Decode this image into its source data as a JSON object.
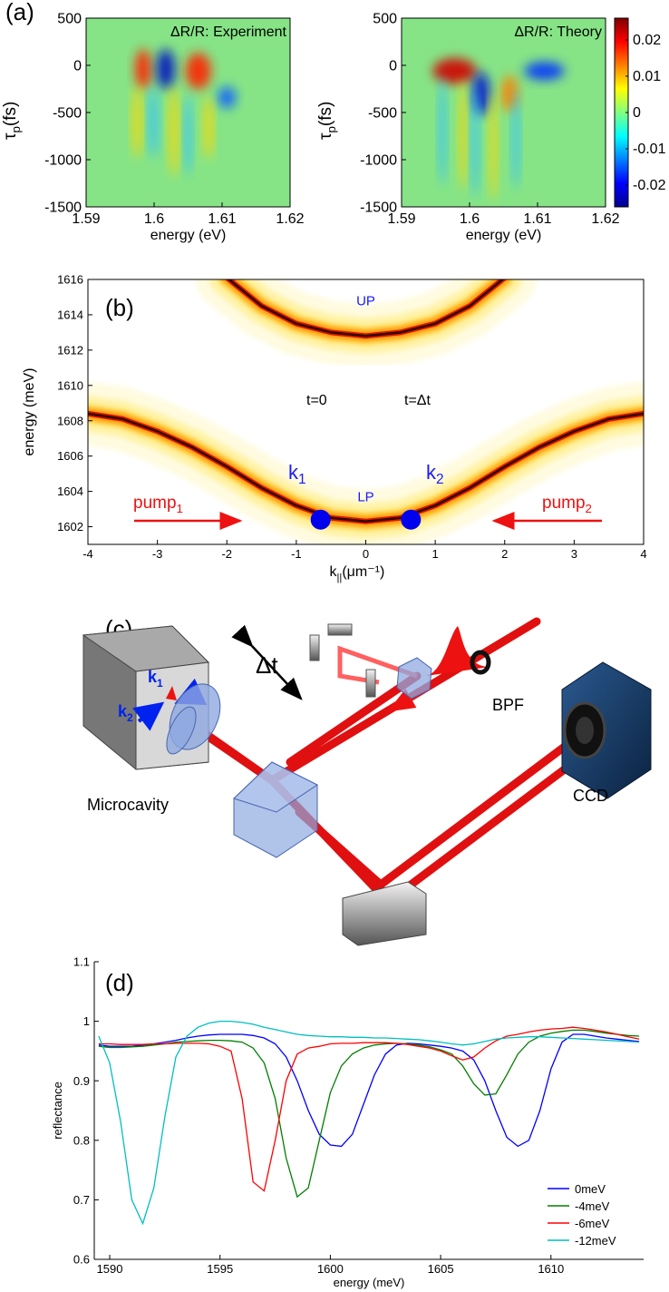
{
  "chart_data": [
    {
      "type": "heatmap",
      "label": "(a)",
      "title": "ΔR/R: Experiment",
      "xlabel": "energy (eV)",
      "ylabel": {
        "symbol": "τ",
        "sub": "p",
        "unit": "(fs)"
      },
      "xlim": [
        1.59,
        1.62
      ],
      "ylim": [
        -1500,
        500
      ],
      "xticks": [
        1.59,
        1.6,
        1.61,
        1.62
      ],
      "yticks": [
        500,
        0,
        -500,
        -1000,
        -1500
      ]
    },
    {
      "type": "heatmap",
      "title": "ΔR/R: Theory",
      "xlabel": "energy (eV)",
      "ylabel": {
        "symbol": "τ",
        "sub": "p",
        "unit": "(fs)"
      },
      "xlim": [
        1.59,
        1.62
      ],
      "ylim": [
        -1500,
        500
      ],
      "xticks": [
        1.59,
        1.6,
        1.61,
        1.62
      ],
      "yticks": [
        500,
        0,
        -500,
        -1000,
        -1500
      ],
      "clim": [
        -0.026,
        0.026
      ],
      "cticks": [
        0.02,
        0.01,
        0,
        -0.01,
        -0.02
      ]
    },
    {
      "type": "line",
      "label": "(b)",
      "xlabel": {
        "symbol": "k",
        "sub": "||",
        "unit": "(μm⁻¹)"
      },
      "ylabel": "energy (meV)",
      "xlim": [
        -4,
        4
      ],
      "ylim": [
        1601,
        1616
      ],
      "xticks": [
        -4,
        -3,
        -2,
        -1,
        0,
        1,
        2,
        3,
        4
      ],
      "yticks": [
        1602,
        1604,
        1606,
        1608,
        1610,
        1612,
        1614,
        1616
      ],
      "x": [
        -4,
        -3.5,
        -3,
        -2.5,
        -2,
        -1.5,
        -1,
        -0.5,
        0,
        0.5,
        1,
        1.5,
        2,
        2.5,
        3,
        3.5,
        4
      ],
      "series": [
        {
          "name": "LP",
          "values": [
            1608.4,
            1608.1,
            1607.4,
            1606.5,
            1605.4,
            1604.2,
            1603.2,
            1602.5,
            1602.3,
            1602.5,
            1603.2,
            1604.2,
            1605.4,
            1606.5,
            1607.4,
            1608.1,
            1608.4
          ]
        },
        {
          "name": "UP",
          "values": [
            null,
            null,
            null,
            null,
            1616.1,
            1614.5,
            1613.5,
            1613.0,
            1612.8,
            1613.0,
            1613.5,
            1614.5,
            1616.1,
            null,
            null,
            null,
            null
          ]
        }
      ],
      "markers": {
        "x": [
          -0.65,
          0.65
        ],
        "y": [
          1602.4,
          1602.4
        ],
        "color": "#0000ee"
      },
      "annotations": {
        "t0": "t=0",
        "tdt": "t=Δt",
        "k1": {
          "text": "k",
          "sub": "1"
        },
        "k2": {
          "text": "k",
          "sub": "2"
        },
        "pump1": {
          "text": "pump",
          "sub": "1"
        },
        "pump2": {
          "text": "pump",
          "sub": "2"
        }
      }
    },
    {
      "type": "line",
      "label": "(d)",
      "xlabel": "energy (meV)",
      "ylabel": "reflectance",
      "xlim": [
        1589.3,
        1614.2
      ],
      "ylim": [
        0.6,
        1.1
      ],
      "xticks": [
        1590,
        1595,
        1600,
        1605,
        1610
      ],
      "yticks": [
        0.6,
        0.7,
        0.8,
        0.9,
        1,
        1.1
      ],
      "x": [
        1589.5,
        1590,
        1590.5,
        1591,
        1591.5,
        1592,
        1592.5,
        1593,
        1593.5,
        1594,
        1594.5,
        1595,
        1595.5,
        1596,
        1596.5,
        1597,
        1597.5,
        1598,
        1598.5,
        1599,
        1599.5,
        1600,
        1600.5,
        1601,
        1601.5,
        1602,
        1602.5,
        1603,
        1603.5,
        1604,
        1604.5,
        1605,
        1605.5,
        1606,
        1606.5,
        1607,
        1607.5,
        1608,
        1608.5,
        1609,
        1609.5,
        1610,
        1610.5,
        1611,
        1611.5,
        1612,
        1612.5,
        1613,
        1613.5,
        1614
      ],
      "series": [
        {
          "name": "0meV",
          "color": "#0000ff",
          "values": [
            0.96,
            0.958,
            0.958,
            0.958,
            0.96,
            0.962,
            0.965,
            0.968,
            0.972,
            0.975,
            0.977,
            0.978,
            0.978,
            0.978,
            0.976,
            0.972,
            0.962,
            0.94,
            0.9,
            0.85,
            0.81,
            0.792,
            0.79,
            0.81,
            0.86,
            0.91,
            0.945,
            0.96,
            0.963,
            0.962,
            0.96,
            0.958,
            0.955,
            0.95,
            0.935,
            0.9,
            0.85,
            0.805,
            0.79,
            0.8,
            0.85,
            0.92,
            0.965,
            0.978,
            0.978,
            0.975,
            0.972,
            0.97,
            0.968,
            0.966
          ]
        },
        {
          "name": "-4meV",
          "color": "#007f00",
          "values": [
            0.958,
            0.956,
            0.956,
            0.957,
            0.958,
            0.96,
            0.962,
            0.965,
            0.966,
            0.967,
            0.968,
            0.968,
            0.967,
            0.965,
            0.955,
            0.93,
            0.87,
            0.77,
            0.705,
            0.72,
            0.8,
            0.88,
            0.925,
            0.945,
            0.955,
            0.96,
            0.962,
            0.963,
            0.962,
            0.96,
            0.957,
            0.952,
            0.945,
            0.925,
            0.895,
            0.876,
            0.878,
            0.91,
            0.945,
            0.965,
            0.975,
            0.98,
            0.983,
            0.985,
            0.985,
            0.983,
            0.98,
            0.978,
            0.976,
            0.975
          ]
        },
        {
          "name": "-6meV",
          "color": "#ff0000",
          "values": [
            0.962,
            0.962,
            0.961,
            0.961,
            0.961,
            0.962,
            0.962,
            0.963,
            0.963,
            0.963,
            0.962,
            0.958,
            0.95,
            0.87,
            0.73,
            0.715,
            0.8,
            0.9,
            0.945,
            0.955,
            0.958,
            0.962,
            0.963,
            0.963,
            0.964,
            0.964,
            0.964,
            0.963,
            0.961,
            0.958,
            0.955,
            0.95,
            0.942,
            0.935,
            0.94,
            0.955,
            0.967,
            0.975,
            0.978,
            0.982,
            0.985,
            0.987,
            0.988,
            0.99,
            0.988,
            0.985,
            0.982,
            0.978,
            0.974,
            0.97
          ]
        },
        {
          "name": "-12meV",
          "color": "#00bfbf",
          "values": [
            0.975,
            0.93,
            0.83,
            0.7,
            0.66,
            0.72,
            0.84,
            0.94,
            0.975,
            0.99,
            0.997,
            1.0,
            1.0,
            0.998,
            0.995,
            0.99,
            0.986,
            0.982,
            0.978,
            0.976,
            0.975,
            0.974,
            0.974,
            0.973,
            0.973,
            0.972,
            0.972,
            0.971,
            0.97,
            0.969,
            0.967,
            0.965,
            0.962,
            0.96,
            0.962,
            0.966,
            0.97,
            0.972,
            0.973,
            0.974,
            0.974,
            0.973,
            0.972,
            0.971,
            0.97,
            0.969,
            0.968,
            0.967,
            0.966,
            0.965
          ]
        }
      ]
    }
  ],
  "diagram": {
    "label": "(c)",
    "delay": "Δt",
    "filter": "BPF",
    "camera": "CCD",
    "sample": "Microcavity",
    "k1": {
      "text": "k",
      "sub": "1"
    },
    "k2": {
      "text": "k",
      "sub": "2"
    }
  }
}
